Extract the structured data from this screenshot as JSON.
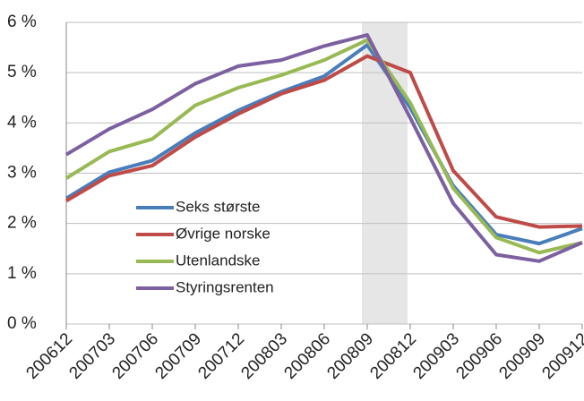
{
  "chart_data": {
    "type": "line",
    "categories": [
      "200612",
      "200703",
      "200706",
      "200709",
      "200712",
      "200803",
      "200806",
      "200809",
      "200812",
      "200903",
      "200906",
      "200909",
      "200912"
    ],
    "series": [
      {
        "name": "Seks største",
        "color": "#4a7ebb",
        "values": [
          2.5,
          3.02,
          3.25,
          3.8,
          4.25,
          4.62,
          4.93,
          5.55,
          4.3,
          2.75,
          1.78,
          1.6,
          1.9
        ]
      },
      {
        "name": "Øvrige norske",
        "color": "#be4b48",
        "values": [
          2.45,
          2.95,
          3.15,
          3.72,
          4.18,
          4.58,
          4.85,
          5.33,
          5.0,
          3.05,
          2.13,
          1.93,
          1.95
        ]
      },
      {
        "name": "Utenlandske",
        "color": "#98b954",
        "values": [
          2.9,
          3.43,
          3.68,
          4.35,
          4.7,
          4.95,
          5.25,
          5.65,
          4.4,
          2.7,
          1.72,
          1.42,
          1.62
        ]
      },
      {
        "name": "Styringsrenten",
        "color": "#7d60a0",
        "values": [
          3.37,
          3.88,
          4.27,
          4.78,
          5.13,
          5.25,
          5.53,
          5.75,
          4.1,
          2.4,
          1.38,
          1.25,
          1.62
        ]
      }
    ],
    "highlight": [
      "200809",
      "200812"
    ],
    "ylim": [
      0,
      6
    ],
    "yticks": [
      {
        "value": 0,
        "label": "0 %"
      },
      {
        "value": 1,
        "label": "1 %"
      },
      {
        "value": 2,
        "label": "2 %"
      },
      {
        "value": 3,
        "label": "3 %"
      },
      {
        "value": 4,
        "label": "4 %"
      },
      {
        "value": 5,
        "label": "5 %"
      },
      {
        "value": 6,
        "label": "6 %"
      }
    ],
    "grid": true
  }
}
